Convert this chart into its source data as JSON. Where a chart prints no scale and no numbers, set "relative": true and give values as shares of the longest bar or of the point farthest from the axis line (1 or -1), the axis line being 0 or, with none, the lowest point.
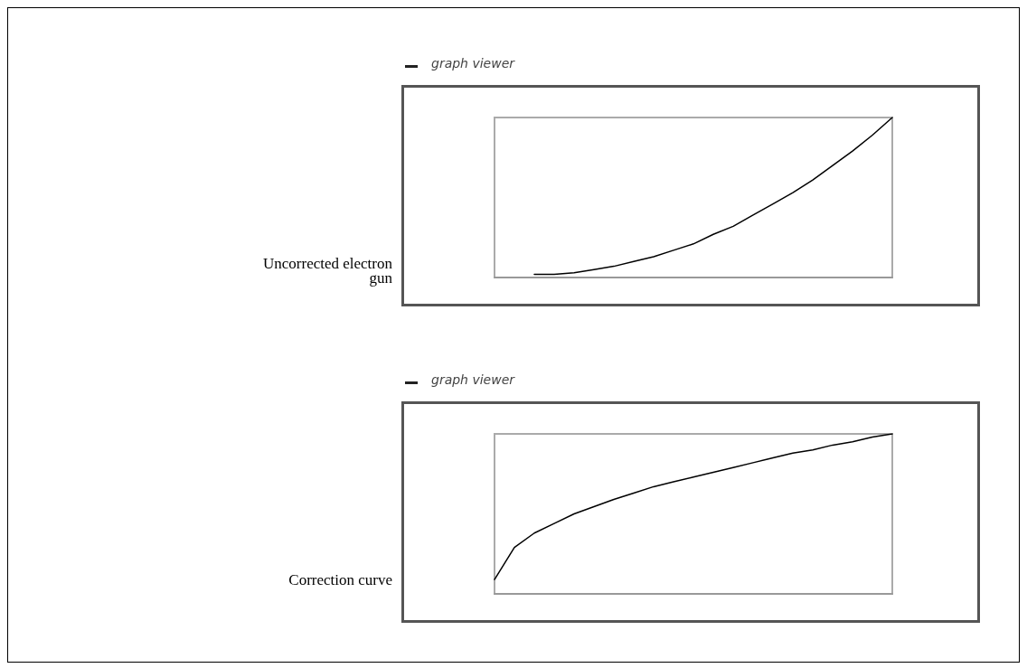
{
  "chart_data": [
    {
      "type": "line",
      "title": "graph viewer",
      "annotations": [
        "Uncorrected electron gun"
      ],
      "relative": true,
      "marker": "none",
      "color": "#000000",
      "categories": [
        null,
        null,
        null,
        null,
        null,
        null,
        null,
        null,
        null,
        null,
        null,
        null,
        null,
        null,
        null,
        null,
        null,
        null,
        null,
        null,
        null
      ],
      "values": [
        null,
        null,
        0.02,
        0.02,
        0.03,
        0.05,
        0.07,
        0.1,
        0.13,
        0.17,
        0.21,
        0.27,
        0.32,
        0.39,
        0.46,
        0.53,
        0.61,
        0.7,
        0.79,
        0.89,
        1.0
      ]
    },
    {
      "type": "line",
      "title": "graph viewer",
      "annotations": [
        "Correction curve"
      ],
      "relative": true,
      "marker": "none",
      "color": "#000000",
      "categories": [
        null,
        null,
        null,
        null,
        null,
        null,
        null,
        null,
        null,
        null,
        null,
        null,
        null,
        null,
        null,
        null,
        null,
        null,
        null,
        null,
        null
      ],
      "values": [
        0.09,
        0.29,
        0.38,
        0.44,
        0.5,
        0.545,
        0.59,
        0.63,
        0.67,
        0.7,
        0.73,
        0.76,
        0.79,
        0.82,
        0.85,
        0.88,
        0.9,
        0.93,
        0.95,
        0.98,
        1.0
      ]
    }
  ]
}
